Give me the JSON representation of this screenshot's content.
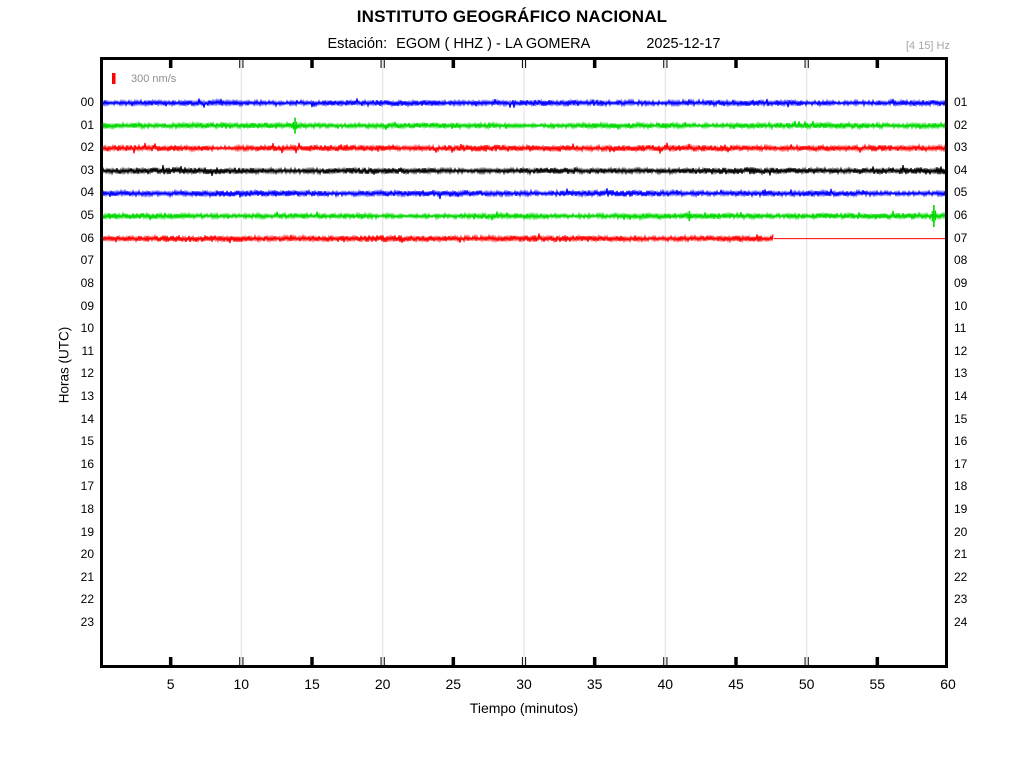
{
  "header": {
    "title": "INSTITUTO GEOGRÁFICO NACIONAL",
    "station_label": "Estación:",
    "station_value": "EGOM ( HHZ ) - LA GOMERA",
    "date": "2025-12-17",
    "filter": "[4 15] Hz"
  },
  "scale": {
    "label": "300 nm/s",
    "color": "#ff0000"
  },
  "axes": {
    "y_label": "Horas (UTC)",
    "x_label": "Tiempo (minutos)",
    "x_ticks": [
      5,
      10,
      15,
      20,
      25,
      30,
      35,
      40,
      45,
      50,
      55,
      60
    ],
    "grid_minutes": [
      10,
      20,
      30,
      40,
      50
    ],
    "x_range": [
      0,
      60
    ],
    "grid_color": "#e4e4e4"
  },
  "chart_data": {
    "type": "line",
    "title": "Helicorder seismogram, one row per UTC hour, continuous ground-motion noise traces",
    "x_unit": "minutes",
    "x_range": [
      0,
      60
    ],
    "trace_color_cycle": [
      "#0000ff",
      "#00d800",
      "#ff0000",
      "#000000"
    ],
    "rows": [
      {
        "start": "00",
        "end": "01",
        "color": "#0000ff",
        "has_data": true,
        "end_minute": 60,
        "noise_amp": 2.1,
        "spikes": [],
        "flat_tail": false
      },
      {
        "start": "01",
        "end": "02",
        "color": "#00d800",
        "has_data": true,
        "end_minute": 60,
        "noise_amp": 2.1,
        "spikes": [
          {
            "minute": 13.8,
            "amplitude": 8
          }
        ],
        "flat_tail": false
      },
      {
        "start": "02",
        "end": "03",
        "color": "#ff0000",
        "has_data": true,
        "end_minute": 60,
        "noise_amp": 2.3,
        "spikes": [],
        "flat_tail": false
      },
      {
        "start": "03",
        "end": "04",
        "color": "#000000",
        "has_data": true,
        "end_minute": 60,
        "noise_amp": 2.4,
        "spikes": [],
        "flat_tail": false
      },
      {
        "start": "04",
        "end": "05",
        "color": "#0000ff",
        "has_data": true,
        "end_minute": 60,
        "noise_amp": 2.2,
        "spikes": [],
        "flat_tail": false
      },
      {
        "start": "05",
        "end": "06",
        "color": "#00d800",
        "has_data": true,
        "end_minute": 60,
        "noise_amp": 2.1,
        "spikes": [
          {
            "minute": 41.7,
            "amplitude": 5
          },
          {
            "minute": 59.0,
            "amplitude": 11
          }
        ],
        "flat_tail": false
      },
      {
        "start": "06",
        "end": "07",
        "color": "#ff0000",
        "has_data": true,
        "end_minute": 47.8,
        "noise_amp": 2.3,
        "spikes": [],
        "flat_tail": true
      },
      {
        "start": "07",
        "end": "08",
        "has_data": false
      },
      {
        "start": "08",
        "end": "09",
        "has_data": false
      },
      {
        "start": "09",
        "end": "10",
        "has_data": false
      },
      {
        "start": "10",
        "end": "11",
        "has_data": false
      },
      {
        "start": "11",
        "end": "12",
        "has_data": false
      },
      {
        "start": "12",
        "end": "13",
        "has_data": false
      },
      {
        "start": "13",
        "end": "14",
        "has_data": false
      },
      {
        "start": "14",
        "end": "15",
        "has_data": false
      },
      {
        "start": "15",
        "end": "16",
        "has_data": false
      },
      {
        "start": "16",
        "end": "17",
        "has_data": false
      },
      {
        "start": "17",
        "end": "18",
        "has_data": false
      },
      {
        "start": "18",
        "end": "19",
        "has_data": false
      },
      {
        "start": "19",
        "end": "20",
        "has_data": false
      },
      {
        "start": "20",
        "end": "21",
        "has_data": false
      },
      {
        "start": "21",
        "end": "22",
        "has_data": false
      },
      {
        "start": "22",
        "end": "23",
        "has_data": false
      },
      {
        "start": "23",
        "end": "24",
        "has_data": false
      }
    ]
  }
}
